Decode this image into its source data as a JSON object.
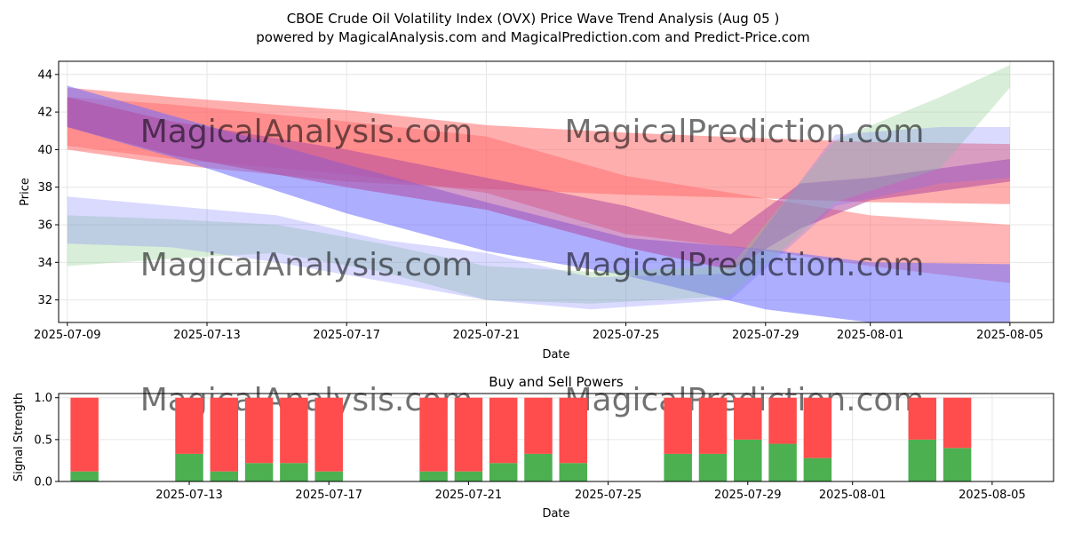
{
  "title_line1": "CBOE Crude Oil Volatility Index (OVX) Price Wave Trend Analysis (Aug 05 )",
  "title_line2": "powered by MagicalAnalysis.com and MagicalPrediction.com and Predict-Price.com",
  "watermarks": [
    "MagicalAnalysis.com",
    "MagicalPrediction.com"
  ],
  "colors": {
    "buy": "#4caf50",
    "sell": "#ff4c4c",
    "red_wave": "#ff6b6b",
    "blue_wave": "#6b6bff",
    "green_wave": "#8fce8f",
    "purple_wave": "#b04aa0"
  },
  "chart_data": [
    {
      "type": "area",
      "title": "",
      "xlabel": "Date",
      "ylabel": "Price",
      "ylim": [
        30.8,
        44.7
      ],
      "xlim": [
        "2025-07-08T18:00",
        "2025-08-06T06:00"
      ],
      "grid": true,
      "x_ticks": [
        "2025-07-09",
        "2025-07-13",
        "2025-07-17",
        "2025-07-21",
        "2025-07-25",
        "2025-07-29",
        "2025-08-01",
        "2025-08-05"
      ],
      "y_ticks": [
        32,
        34,
        36,
        38,
        40,
        42,
        44
      ],
      "series": [
        {
          "name": "red band 1",
          "color": "red",
          "alpha": 0.55,
          "x": [
            "2025-07-09",
            "2025-07-12",
            "2025-07-17",
            "2025-07-21",
            "2025-07-25",
            "2025-07-29",
            "2025-08-01",
            "2025-08-05"
          ],
          "upper": [
            43.3,
            42.8,
            42.1,
            41.3,
            40.9,
            40.6,
            40.4,
            40.3
          ],
          "lower": [
            40.0,
            39.2,
            38.3,
            37.9,
            37.6,
            37.4,
            37.2,
            37.1
          ]
        },
        {
          "name": "red band 2",
          "color": "red",
          "alpha": 0.5,
          "x": [
            "2025-07-09",
            "2025-07-12",
            "2025-07-17",
            "2025-07-21",
            "2025-07-25",
            "2025-07-29",
            "2025-08-01",
            "2025-08-05"
          ],
          "upper": [
            42.8,
            42.4,
            41.5,
            40.7,
            38.6,
            37.4,
            36.5,
            36.0
          ],
          "lower": [
            40.2,
            39.5,
            38.7,
            37.7,
            35.5,
            34.6,
            33.8,
            32.9
          ]
        },
        {
          "name": "blue band 1",
          "color": "blue",
          "alpha": 0.55,
          "x": [
            "2025-07-09",
            "2025-07-12",
            "2025-07-17",
            "2025-07-21",
            "2025-07-25",
            "2025-07-29",
            "2025-08-01",
            "2025-08-05"
          ],
          "upper": [
            43.4,
            41.8,
            39.2,
            37.2,
            35.3,
            34.7,
            34.0,
            33.9
          ],
          "lower": [
            41.2,
            39.6,
            36.6,
            34.6,
            33.3,
            31.5,
            30.8,
            30.8
          ]
        },
        {
          "name": "purple band",
          "color": "purple",
          "alpha": 0.55,
          "x": [
            "2025-07-09",
            "2025-07-12",
            "2025-07-17",
            "2025-07-21",
            "2025-07-25",
            "2025-07-28",
            "2025-07-30",
            "2025-08-01",
            "2025-08-05"
          ],
          "upper": [
            42.8,
            41.5,
            40.0,
            38.5,
            37.0,
            35.5,
            38.2,
            38.5,
            39.5
          ],
          "lower": [
            41.2,
            39.7,
            38.0,
            36.8,
            34.8,
            33.6,
            35.8,
            37.3,
            38.3
          ]
        },
        {
          "name": "green band",
          "color": "green",
          "alpha": 0.35,
          "x": [
            "2025-07-09",
            "2025-07-12",
            "2025-07-15",
            "2025-07-18",
            "2025-07-21",
            "2025-07-24",
            "2025-07-28",
            "2025-07-31",
            "2025-08-03",
            "2025-08-05"
          ],
          "upper": [
            36.5,
            36.3,
            36.0,
            35.0,
            33.8,
            33.5,
            33.8,
            40.5,
            42.8,
            44.5
          ],
          "lower": [
            33.8,
            34.2,
            34.5,
            33.5,
            32.0,
            31.8,
            32.2,
            37.2,
            39.0,
            43.3
          ]
        },
        {
          "name": "light blue band",
          "color": "blue",
          "alpha": 0.25,
          "x": [
            "2025-07-09",
            "2025-07-12",
            "2025-07-15",
            "2025-07-18",
            "2025-07-21",
            "2025-07-24",
            "2025-07-28",
            "2025-07-31",
            "2025-08-03",
            "2025-08-05"
          ],
          "upper": [
            37.5,
            37.0,
            36.5,
            35.2,
            34.5,
            33.2,
            33.4,
            40.8,
            41.2,
            41.2
          ],
          "lower": [
            35.0,
            34.8,
            34.0,
            33.0,
            32.0,
            31.5,
            32.0,
            37.0,
            38.2,
            38.5
          ]
        }
      ]
    },
    {
      "type": "bar",
      "title": "Buy and Sell Powers",
      "xlabel": "Date",
      "ylabel": "Signal Strength",
      "ylim": [
        0,
        1.05
      ],
      "grid": true,
      "x_ticks": [
        "2025-07-13",
        "2025-07-17",
        "2025-07-21",
        "2025-07-25",
        "2025-07-29",
        "2025-08-01",
        "2025-08-05"
      ],
      "y_ticks": [
        "0.0",
        "0.5",
        "1.0"
      ],
      "dates": [
        "2025-07-10",
        "2025-07-13",
        "2025-07-14",
        "2025-07-15",
        "2025-07-16",
        "2025-07-17",
        "2025-07-20",
        "2025-07-21",
        "2025-07-22",
        "2025-07-23",
        "2025-07-24",
        "2025-07-27",
        "2025-07-28",
        "2025-07-29",
        "2025-07-30",
        "2025-07-31",
        "2025-08-03",
        "2025-08-04"
      ],
      "series": [
        {
          "name": "Buy",
          "values": [
            0.12,
            0.33,
            0.12,
            0.22,
            0.22,
            0.12,
            0.12,
            0.12,
            0.22,
            0.33,
            0.22,
            0.33,
            0.33,
            0.5,
            0.45,
            0.28,
            0.5,
            0.4
          ]
        },
        {
          "name": "Sell",
          "values": [
            0.88,
            0.67,
            0.88,
            0.78,
            0.78,
            0.88,
            0.88,
            0.88,
            0.78,
            0.67,
            0.78,
            0.67,
            0.67,
            0.5,
            0.55,
            0.72,
            0.5,
            0.6
          ]
        }
      ]
    }
  ]
}
